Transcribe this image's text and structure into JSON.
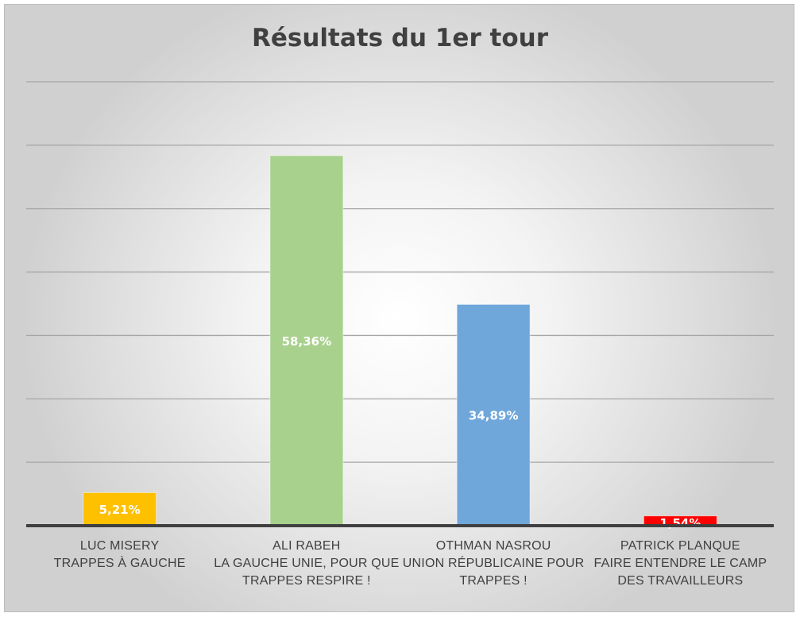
{
  "chart_data": {
    "type": "bar",
    "title": "Résultats du 1er tour",
    "categories": [
      [
        "LUC MISERY",
        "TRAPPES À GAUCHE"
      ],
      [
        "ALI RABEH",
        "LA GAUCHE UNIE, POUR QUE",
        "TRAPPES RESPIRE !"
      ],
      [
        "OTHMAN NASROU",
        "UNION RÉPUBLICAINE POUR",
        "TRAPPES !"
      ],
      [
        "PATRICK PLANQUE",
        "FAIRE ENTENDRE LE CAMP",
        "DES TRAVAILLEURS"
      ]
    ],
    "values": [
      5.21,
      58.36,
      34.89,
      1.54
    ],
    "data_labels": [
      "5,21%",
      "58,36%",
      "34,89%",
      "1,54%"
    ],
    "colors": [
      "#ffc000",
      "#a9d18e",
      "#70a7db",
      "#ff0000"
    ],
    "label_colors": [
      "#ffffff",
      "#ffffff",
      "#ffffff",
      "#ffffff"
    ],
    "ylim": [
      0,
      70
    ],
    "gridline_step": 10,
    "grid": true,
    "legend": "none",
    "xlabel": "",
    "ylabel": ""
  }
}
